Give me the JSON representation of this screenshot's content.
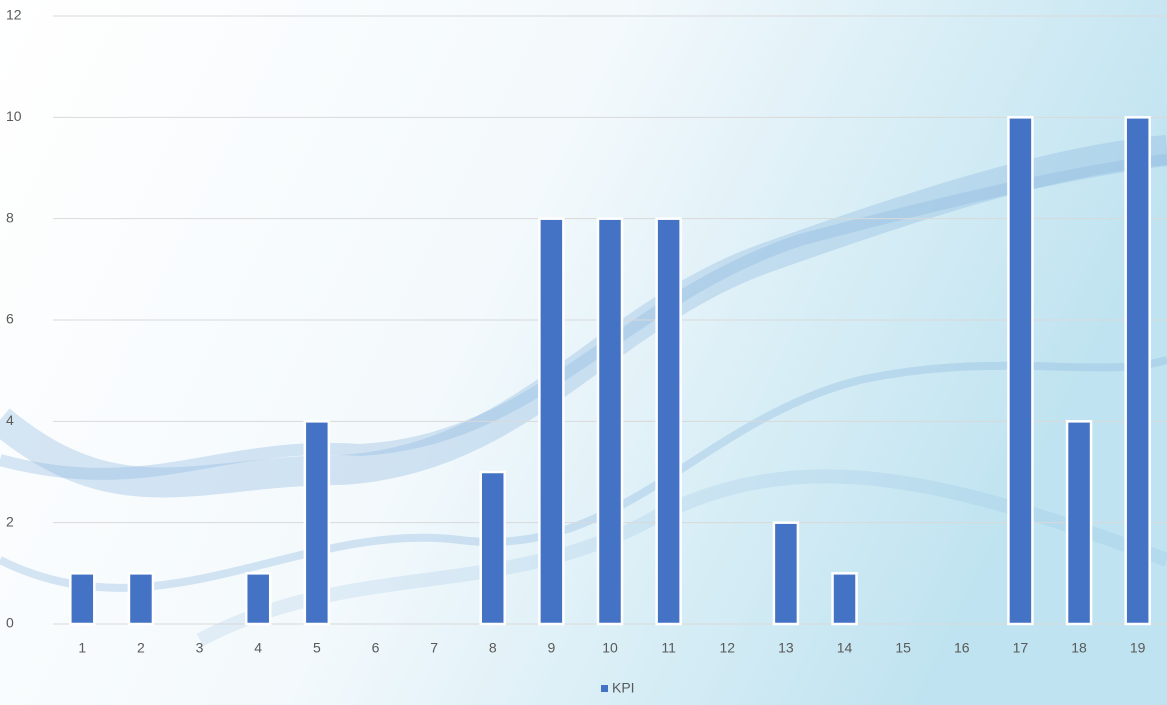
{
  "chart_data": {
    "type": "bar",
    "categories": [
      "1",
      "2",
      "3",
      "4",
      "5",
      "6",
      "7",
      "8",
      "9",
      "10",
      "11",
      "12",
      "13",
      "14",
      "15",
      "16",
      "17",
      "18",
      "19"
    ],
    "series": [
      {
        "name": "KPI",
        "color": "#4472c4",
        "values": [
          1,
          1,
          0,
          1,
          4,
          0,
          0,
          3,
          8,
          8,
          8,
          0,
          2,
          1,
          0,
          0,
          10,
          4,
          10
        ]
      }
    ],
    "ylim": [
      0,
      12
    ],
    "yticks": [
      0,
      2,
      4,
      6,
      8,
      10,
      12
    ],
    "grid": true,
    "legend": "bottom"
  }
}
